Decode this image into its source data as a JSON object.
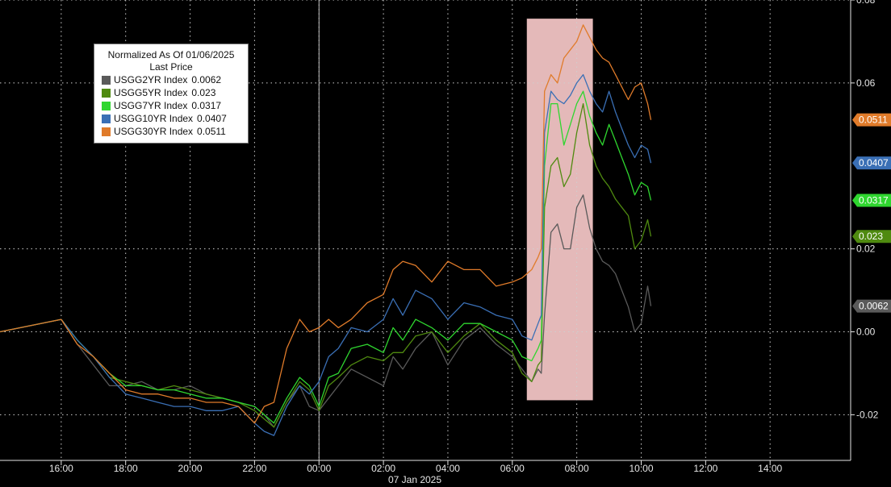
{
  "chart_data": {
    "type": "line",
    "title": "",
    "legend": {
      "title": "Normalized As Of 01/06/2025",
      "subtitle": "Last Price",
      "placement": "top-left"
    },
    "xlabel": "07 Jan 2025",
    "ylabel": "",
    "x_unit": "hours relative to 00:00 on 07 Jan 2025",
    "xlim": [
      -9.9,
      16.5
    ],
    "ylim": [
      -0.031,
      0.08
    ],
    "x_ticks": [
      {
        "x": -8,
        "label": "16:00"
      },
      {
        "x": -6,
        "label": "18:00"
      },
      {
        "x": -4,
        "label": "20:00"
      },
      {
        "x": -2,
        "label": "22:00"
      },
      {
        "x": 0,
        "label": "00:00"
      },
      {
        "x": 2,
        "label": "02:00"
      },
      {
        "x": 4,
        "label": "04:00"
      },
      {
        "x": 6,
        "label": "06:00"
      },
      {
        "x": 8,
        "label": "08:00"
      },
      {
        "x": 10,
        "label": "10:00"
      },
      {
        "x": 12,
        "label": "12:00"
      },
      {
        "x": 14,
        "label": "14:00"
      }
    ],
    "y_ticks": [
      {
        "y": 0.08,
        "label": "0.08"
      },
      {
        "y": 0.06,
        "label": "0.06"
      },
      {
        "y": 0.02,
        "label": "0.02"
      },
      {
        "y": 0.0,
        "label": "0.00"
      },
      {
        "y": -0.02,
        "label": "-0.02"
      }
    ],
    "grid": true,
    "highlight": {
      "x0": 6.45,
      "x1": 8.5,
      "y0": -0.0165,
      "y1": 0.0755,
      "color": "#f7c9c9"
    },
    "x": [
      -9.9,
      -8.0,
      -7.5,
      -7.0,
      -6.5,
      -6.0,
      -5.5,
      -5.0,
      -4.5,
      -4.0,
      -3.5,
      -3.0,
      -2.5,
      -2.0,
      -1.7,
      -1.4,
      -1.0,
      -0.6,
      -0.3,
      0.0,
      0.3,
      0.6,
      1.0,
      1.5,
      2.0,
      2.3,
      2.6,
      3.0,
      3.5,
      4.0,
      4.5,
      5.0,
      5.5,
      6.0,
      6.3,
      6.6,
      6.8,
      6.9,
      7.0,
      7.2,
      7.4,
      7.6,
      7.8,
      8.0,
      8.2,
      8.4,
      8.6,
      8.8,
      9.0,
      9.2,
      9.4,
      9.6,
      9.8,
      10.0,
      10.2,
      10.3
    ],
    "series": [
      {
        "name": "USGG2YR Index",
        "last": "0.0062",
        "color": "#5a5a5a",
        "values": [
          0.0,
          0.003,
          -0.003,
          -0.008,
          -0.013,
          -0.013,
          -0.012,
          -0.014,
          -0.014,
          -0.013,
          -0.015,
          -0.016,
          -0.017,
          -0.018,
          -0.02,
          -0.023,
          -0.017,
          -0.013,
          -0.018,
          -0.019,
          -0.016,
          -0.013,
          -0.009,
          -0.011,
          -0.013,
          -0.006,
          -0.009,
          -0.004,
          -0.0,
          -0.008,
          -0.002,
          0.001,
          -0.003,
          -0.006,
          -0.009,
          -0.012,
          -0.009,
          -0.01,
          0.004,
          0.024,
          0.026,
          0.02,
          0.02,
          0.03,
          0.033,
          0.025,
          0.02,
          0.017,
          0.016,
          0.014,
          0.01,
          0.006,
          0.0,
          0.002,
          0.011,
          0.0062
        ]
      },
      {
        "name": "USGG5YR Index",
        "last": "0.023",
        "color": "#4f8a10",
        "values": [
          0.0,
          0.003,
          -0.002,
          -0.006,
          -0.011,
          -0.012,
          -0.013,
          -0.014,
          -0.013,
          -0.014,
          -0.015,
          -0.016,
          -0.017,
          -0.019,
          -0.021,
          -0.023,
          -0.017,
          -0.012,
          -0.014,
          -0.019,
          -0.013,
          -0.011,
          -0.008,
          -0.006,
          -0.007,
          -0.005,
          -0.005,
          -0.001,
          -0.0,
          -0.005,
          -0.001,
          0.002,
          -0.002,
          -0.005,
          -0.01,
          -0.012,
          -0.008,
          -0.007,
          0.03,
          0.04,
          0.042,
          0.035,
          0.038,
          0.048,
          0.055,
          0.045,
          0.04,
          0.037,
          0.035,
          0.032,
          0.03,
          0.028,
          0.02,
          0.022,
          0.027,
          0.023
        ]
      },
      {
        "name": "USGG7YR Index",
        "last": "0.0317",
        "color": "#2fd62f",
        "values": [
          0.0,
          0.003,
          -0.002,
          -0.006,
          -0.01,
          -0.013,
          -0.013,
          -0.014,
          -0.014,
          -0.015,
          -0.016,
          -0.016,
          -0.017,
          -0.018,
          -0.02,
          -0.022,
          -0.016,
          -0.011,
          -0.013,
          -0.018,
          -0.011,
          -0.01,
          -0.004,
          -0.003,
          -0.005,
          0.001,
          -0.002,
          0.003,
          0.001,
          -0.002,
          0.002,
          0.002,
          0.0,
          -0.002,
          -0.006,
          -0.007,
          -0.004,
          -0.002,
          0.04,
          0.055,
          0.055,
          0.045,
          0.05,
          0.055,
          0.058,
          0.052,
          0.048,
          0.045,
          0.05,
          0.046,
          0.042,
          0.038,
          0.033,
          0.036,
          0.035,
          0.0317
        ]
      },
      {
        "name": "USGG10YR Index",
        "last": "0.0407",
        "color": "#3a6fb5",
        "values": [
          0.0,
          0.003,
          -0.002,
          -0.006,
          -0.011,
          -0.015,
          -0.016,
          -0.017,
          -0.018,
          -0.018,
          -0.019,
          -0.019,
          -0.018,
          -0.022,
          -0.024,
          -0.025,
          -0.018,
          -0.013,
          -0.015,
          -0.012,
          -0.006,
          -0.004,
          0.001,
          -0.0,
          0.003,
          0.008,
          0.004,
          0.01,
          0.008,
          0.003,
          0.007,
          0.006,
          0.004,
          0.003,
          -0.001,
          -0.002,
          0.002,
          0.004,
          0.048,
          0.058,
          0.056,
          0.055,
          0.057,
          0.06,
          0.062,
          0.058,
          0.055,
          0.053,
          0.058,
          0.053,
          0.049,
          0.045,
          0.042,
          0.045,
          0.044,
          0.0407
        ]
      },
      {
        "name": "USGG30YR Index",
        "last": "0.0511",
        "color": "#e07b2a",
        "values": [
          0.0,
          0.003,
          -0.003,
          -0.006,
          -0.01,
          -0.014,
          -0.015,
          -0.015,
          -0.016,
          -0.016,
          -0.017,
          -0.017,
          -0.018,
          -0.022,
          -0.018,
          -0.017,
          -0.004,
          0.003,
          0.0,
          0.001,
          0.003,
          0.001,
          0.003,
          0.007,
          0.009,
          0.015,
          0.017,
          0.016,
          0.012,
          0.017,
          0.015,
          0.015,
          0.011,
          0.012,
          0.013,
          0.015,
          0.018,
          0.02,
          0.058,
          0.062,
          0.06,
          0.066,
          0.068,
          0.07,
          0.074,
          0.071,
          0.068,
          0.066,
          0.065,
          0.062,
          0.059,
          0.056,
          0.059,
          0.06,
          0.055,
          0.0511
        ]
      }
    ]
  }
}
